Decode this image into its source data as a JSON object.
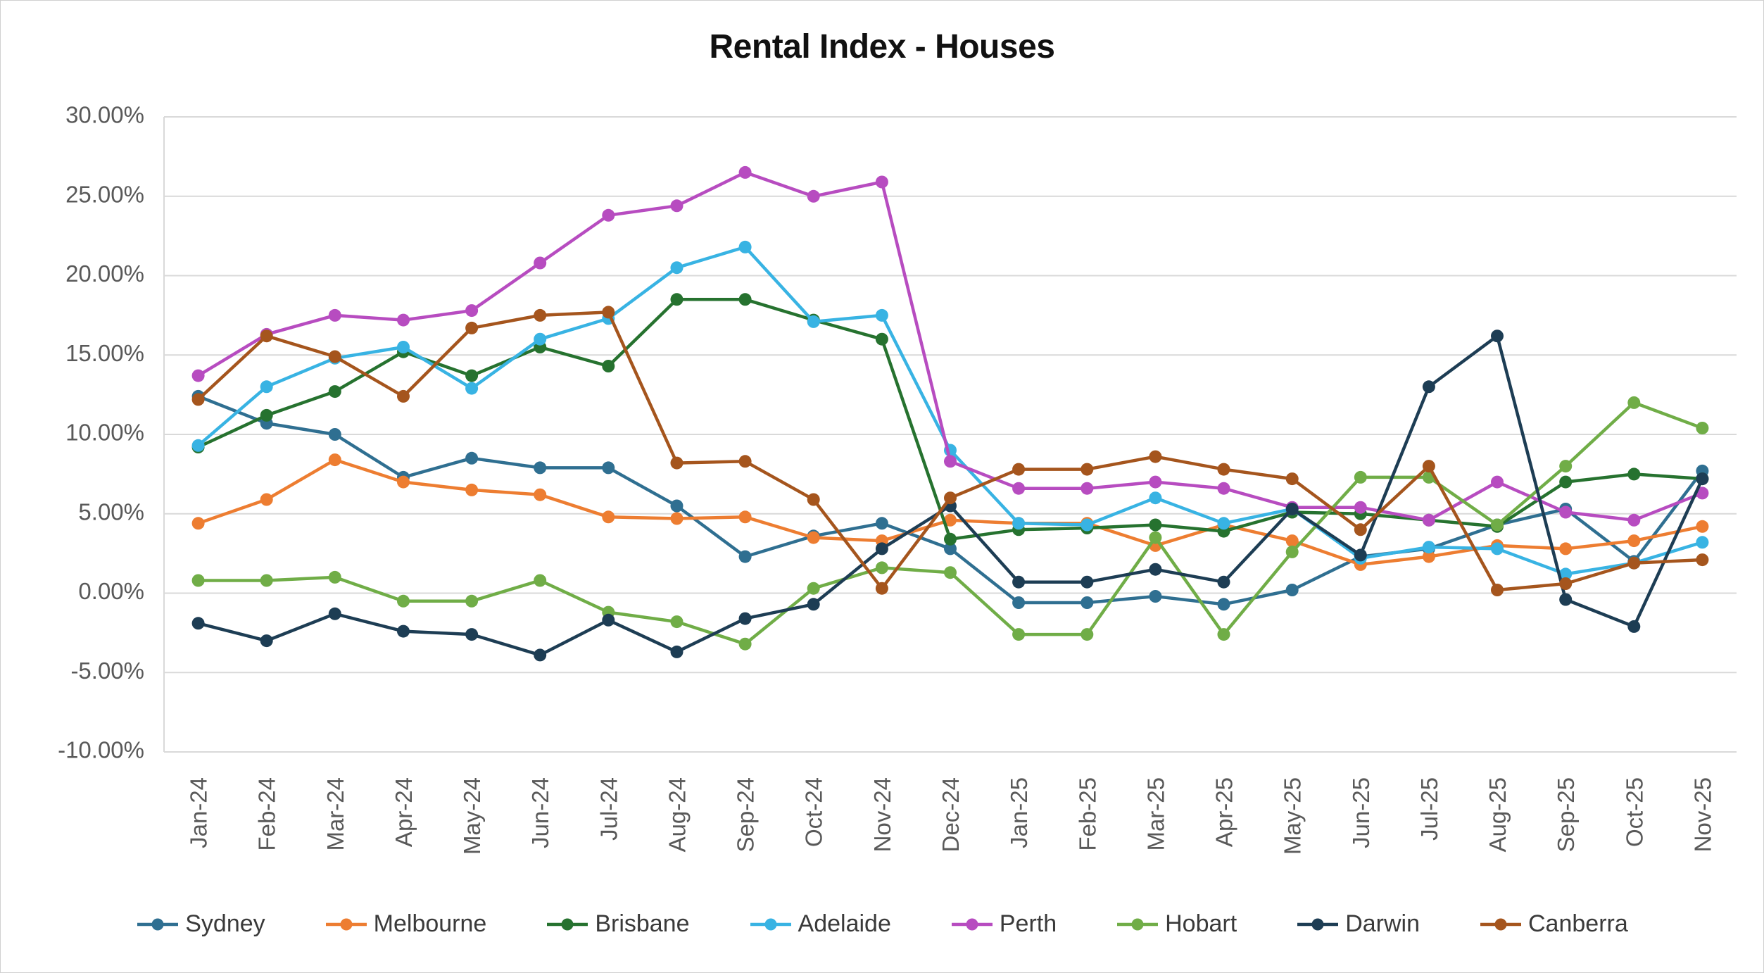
{
  "chart_data": {
    "type": "line",
    "title": "Rental Index - Houses",
    "xlabel": "",
    "ylabel": "",
    "ylim": [
      -10,
      30
    ],
    "grid": true,
    "legend_position": "bottom",
    "axis_text_color": "#595959",
    "gridline_color": "#D9D9D9",
    "y_ticks": [
      {
        "label": "30.00%",
        "value": 30
      },
      {
        "label": "25.00%",
        "value": 25
      },
      {
        "label": "20.00%",
        "value": 20
      },
      {
        "label": "15.00%",
        "value": 15
      },
      {
        "label": "10.00%",
        "value": 10
      },
      {
        "label": "5.00%",
        "value": 5
      },
      {
        "label": "0.00%",
        "value": 0
      },
      {
        "label": "-5.00%",
        "value": -5
      },
      {
        "label": "-10.00%",
        "value": -10
      }
    ],
    "x_categories": [
      "Jan-24",
      "Feb-24",
      "Mar-24",
      "Apr-24",
      "May-24",
      "Jun-24",
      "Jul-24",
      "Aug-24",
      "Sep-24",
      "Oct-24",
      "Nov-24",
      "Dec-24",
      "Jan-25",
      "Feb-25",
      "Mar-25",
      "Apr-25",
      "May-25",
      "Jun-25",
      "Jul-25",
      "Aug-25",
      "Sep-25",
      "Oct-25",
      "Nov-25"
    ],
    "series": [
      {
        "name": "Sydney",
        "color": "#2F6F91",
        "values": [
          12.4,
          10.7,
          10.0,
          7.3,
          8.5,
          7.9,
          7.9,
          5.5,
          2.3,
          3.6,
          4.4,
          2.8,
          -0.6,
          -0.6,
          -0.2,
          -0.7,
          0.2,
          2.3,
          2.8,
          4.3,
          5.3,
          2.0,
          7.7
        ]
      },
      {
        "name": "Melbourne",
        "color": "#ED7D31",
        "values": [
          4.4,
          5.9,
          8.4,
          7.0,
          6.5,
          6.2,
          4.8,
          4.7,
          4.8,
          3.5,
          3.3,
          4.6,
          4.4,
          4.4,
          3.0,
          4.3,
          3.3,
          1.8,
          2.3,
          3.0,
          2.8,
          3.3,
          4.2
        ]
      },
      {
        "name": "Brisbane",
        "color": "#26722F",
        "values": [
          9.2,
          11.2,
          12.7,
          15.2,
          13.7,
          15.5,
          14.3,
          18.5,
          18.5,
          17.2,
          16.0,
          3.4,
          4.0,
          4.1,
          4.3,
          3.9,
          5.1,
          5.0,
          4.6,
          4.2,
          7.0,
          7.5,
          7.2
        ]
      },
      {
        "name": "Adelaide",
        "color": "#38B3E3",
        "values": [
          9.3,
          13.0,
          14.8,
          15.5,
          12.9,
          16.0,
          17.3,
          20.5,
          21.8,
          17.1,
          17.5,
          9.0,
          4.4,
          4.3,
          6.0,
          4.4,
          5.3,
          2.2,
          2.9,
          2.8,
          1.2,
          1.9,
          3.2
        ]
      },
      {
        "name": "Perth",
        "color": "#B74CC0",
        "values": [
          13.7,
          16.3,
          17.5,
          17.2,
          17.8,
          20.8,
          23.8,
          24.4,
          26.5,
          25.0,
          25.9,
          8.3,
          6.6,
          6.6,
          7.0,
          6.6,
          5.4,
          5.4,
          4.6,
          7.0,
          5.1,
          4.6,
          6.3
        ]
      },
      {
        "name": "Hobart",
        "color": "#70AD47",
        "values": [
          0.8,
          0.8,
          1.0,
          -0.5,
          -0.5,
          0.8,
          -1.2,
          -1.8,
          -3.2,
          0.3,
          1.6,
          1.3,
          -2.6,
          -2.6,
          3.5,
          -2.6,
          2.6,
          7.3,
          7.3,
          4.3,
          8.0,
          12.0,
          10.4
        ]
      },
      {
        "name": "Darwin",
        "color": "#1D3D54",
        "values": [
          -1.9,
          -3.0,
          -1.3,
          -2.4,
          -2.6,
          -3.9,
          -1.7,
          -3.7,
          -1.6,
          -0.7,
          2.8,
          5.5,
          0.7,
          0.7,
          1.5,
          0.7,
          5.3,
          2.4,
          13.0,
          16.2,
          -0.4,
          -2.1,
          7.2
        ]
      },
      {
        "name": "Canberra",
        "color": "#A5551D",
        "values": [
          12.2,
          16.2,
          14.9,
          12.4,
          16.7,
          17.5,
          17.7,
          8.2,
          8.3,
          5.9,
          0.3,
          6.0,
          7.8,
          7.8,
          8.6,
          7.8,
          7.2,
          4.0,
          8.0,
          0.2,
          0.6,
          1.9,
          2.1
        ]
      }
    ]
  }
}
